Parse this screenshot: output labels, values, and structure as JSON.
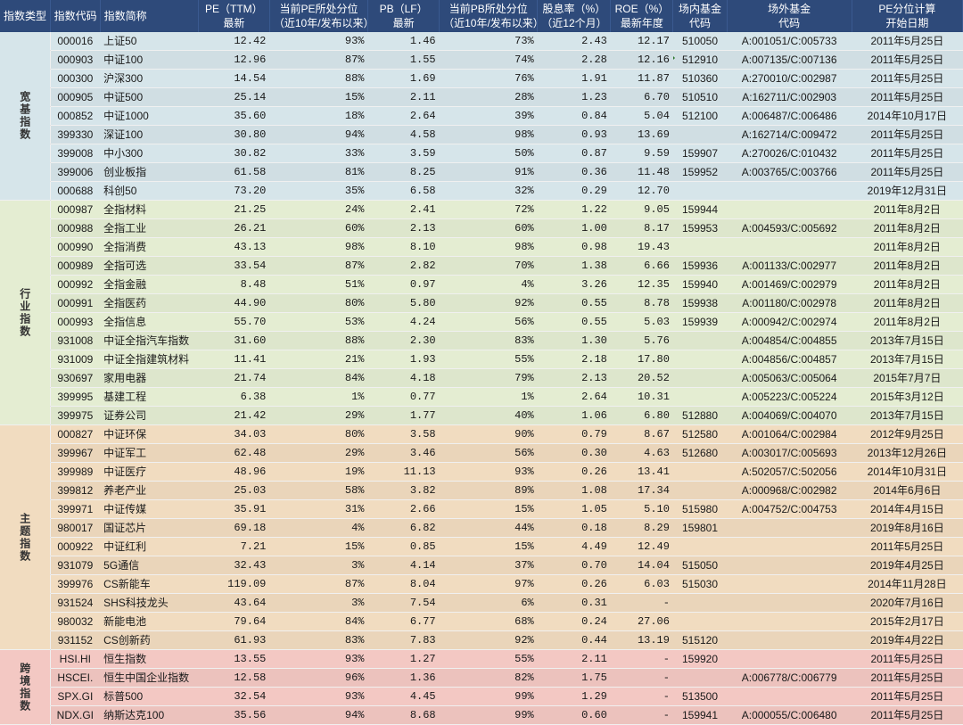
{
  "columns": {
    "cat": "指数类型",
    "code": "指数代码",
    "name": "指数简称",
    "pe": "PE（TTM）\n最新",
    "pe_pct": "当前PE所处分位\n（近10年/发布以来）",
    "pb": "PB（LF）\n最新",
    "pb_pct": "当前PB所处分位\n（近10年/发布以来）",
    "div": "股息率（%）\n（近12个月）",
    "roe": "ROE（%）\n最新年度",
    "innerFund": "场内基金\n代码",
    "outerFund": "场外基金\n代码",
    "date": "PE分位计算\n开始日期"
  },
  "groups": [
    {
      "label": "宽基指数",
      "bg": "bg-broad",
      "rows": [
        {
          "code": "000016",
          "name": "上证50",
          "pe": "12.42",
          "pe_pct": "93%",
          "pb": "1.46",
          "pb_pct": "73%",
          "div": "2.43",
          "roe": "12.17",
          "inner": "510050",
          "outer": "A:001051/C:005733",
          "date": "2011年5月25日"
        },
        {
          "code": "000903",
          "name": "中证100",
          "pe": "12.96",
          "pe_pct": "87%",
          "pb": "1.55",
          "pb_pct": "74%",
          "div": "2.28",
          "roe": "12.16",
          "inner": "512910",
          "innerMark": true,
          "outer": "A:007135/C:007136",
          "date": "2011年5月25日"
        },
        {
          "code": "000300",
          "name": "沪深300",
          "pe": "14.54",
          "pe_pct": "88%",
          "pb": "1.69",
          "pb_pct": "76%",
          "div": "1.91",
          "roe": "11.87",
          "inner": "510360",
          "outer": "A:270010/C:002987",
          "date": "2011年5月25日"
        },
        {
          "code": "000905",
          "name": "中证500",
          "pe": "25.14",
          "pe_pct": "15%",
          "pb": "2.11",
          "pb_pct": "28%",
          "div": "1.23",
          "roe": "6.70",
          "inner": "510510",
          "outer": "A:162711/C:002903",
          "date": "2011年5月25日"
        },
        {
          "code": "000852",
          "name": "中证1000",
          "pe": "35.60",
          "pe_pct": "18%",
          "pb": "2.64",
          "pb_pct": "39%",
          "div": "0.84",
          "roe": "5.04",
          "inner": "512100",
          "outer": "A:006487/C:006486",
          "date": "2014年10月17日"
        },
        {
          "code": "399330",
          "name": "深证100",
          "pe": "30.80",
          "pe_pct": "94%",
          "pb": "4.58",
          "pb_pct": "98%",
          "div": "0.93",
          "roe": "13.69",
          "inner": "",
          "outer": "A:162714/C:009472",
          "date": "2011年5月25日"
        },
        {
          "code": "399008",
          "name": "中小300",
          "pe": "30.82",
          "pe_pct": "33%",
          "pb": "3.59",
          "pb_pct": "50%",
          "div": "0.87",
          "roe": "9.59",
          "inner": "159907",
          "outer": "A:270026/C:010432",
          "date": "2011年5月25日"
        },
        {
          "code": "399006",
          "name": "创业板指",
          "pe": "61.58",
          "pe_pct": "81%",
          "pb": "8.25",
          "pb_pct": "91%",
          "div": "0.36",
          "roe": "11.48",
          "inner": "159952",
          "outer": "A:003765/C:003766",
          "date": "2011年5月25日"
        },
        {
          "code": "000688",
          "name": "科创50",
          "pe": "73.20",
          "pe_pct": "35%",
          "pb": "6.58",
          "pb_pct": "32%",
          "div": "0.29",
          "roe": "12.70",
          "inner": "",
          "outer": "",
          "date": "2019年12月31日"
        }
      ]
    },
    {
      "label": "行业指数",
      "bg": "bg-sector",
      "rows": [
        {
          "code": "000987",
          "name": "全指材料",
          "pe": "21.25",
          "pe_pct": "24%",
          "pb": "2.41",
          "pb_pct": "72%",
          "div": "1.22",
          "roe": "9.05",
          "inner": "159944",
          "outer": "",
          "date": "2011年8月2日"
        },
        {
          "code": "000988",
          "name": "全指工业",
          "pe": "26.21",
          "pe_pct": "60%",
          "pb": "2.13",
          "pb_pct": "60%",
          "div": "1.00",
          "roe": "8.17",
          "inner": "159953",
          "outer": "A:004593/C:005692",
          "date": "2011年8月2日"
        },
        {
          "code": "000990",
          "name": "全指消费",
          "pe": "43.13",
          "pe_pct": "98%",
          "pb": "8.10",
          "pb_pct": "98%",
          "div": "0.98",
          "roe": "19.43",
          "inner": "",
          "outer": "",
          "date": "2011年8月2日"
        },
        {
          "code": "000989",
          "name": "全指可选",
          "pe": "33.54",
          "pe_pct": "87%",
          "pb": "2.82",
          "pb_pct": "70%",
          "div": "1.38",
          "roe": "6.66",
          "inner": "159936",
          "outer": "A:001133/C:002977",
          "date": "2011年8月2日"
        },
        {
          "code": "000992",
          "name": "全指金融",
          "pe": "8.48",
          "pe_pct": "51%",
          "pb": "0.97",
          "pb_pct": "4%",
          "div": "3.26",
          "roe": "12.35",
          "inner": "159940",
          "outer": "A:001469/C:002979",
          "date": "2011年8月2日"
        },
        {
          "code": "000991",
          "name": "全指医药",
          "pe": "44.90",
          "pe_pct": "80%",
          "pb": "5.80",
          "pb_pct": "92%",
          "div": "0.55",
          "roe": "8.78",
          "inner": "159938",
          "outer": "A:001180/C:002978",
          "date": "2011年8月2日"
        },
        {
          "code": "000993",
          "name": "全指信息",
          "pe": "55.70",
          "pe_pct": "53%",
          "pb": "4.24",
          "pb_pct": "56%",
          "div": "0.55",
          "roe": "5.03",
          "inner": "159939",
          "outer": "A:000942/C:002974",
          "date": "2011年8月2日"
        },
        {
          "code": "931008",
          "name": "中证全指汽车指数",
          "pe": "31.60",
          "pe_pct": "88%",
          "pb": "2.30",
          "pb_pct": "83%",
          "div": "1.30",
          "roe": "5.76",
          "inner": "",
          "outer": "A:004854/C:004855",
          "date": "2013年7月15日"
        },
        {
          "code": "931009",
          "name": "中证全指建筑材料",
          "pe": "11.41",
          "pe_pct": "21%",
          "pb": "1.93",
          "pb_pct": "55%",
          "div": "2.18",
          "roe": "17.80",
          "inner": "",
          "outer": "A:004856/C:004857",
          "date": "2013年7月15日"
        },
        {
          "code": "930697",
          "name": "家用电器",
          "pe": "21.74",
          "pe_pct": "84%",
          "pb": "4.18",
          "pb_pct": "79%",
          "div": "2.13",
          "roe": "20.52",
          "inner": "",
          "outer": "A:005063/C:005064",
          "date": "2015年7月7日"
        },
        {
          "code": "399995",
          "name": "基建工程",
          "pe": "6.38",
          "pe_pct": "1%",
          "pb": "0.77",
          "pb_pct": "1%",
          "div": "2.64",
          "roe": "10.31",
          "inner": "",
          "outer": "A:005223/C:005224",
          "date": "2015年3月12日"
        },
        {
          "code": "399975",
          "name": "证券公司",
          "pe": "21.42",
          "pe_pct": "29%",
          "pb": "1.77",
          "pb_pct": "40%",
          "div": "1.06",
          "roe": "6.80",
          "inner": "512880",
          "outer": "A:004069/C:004070",
          "date": "2013年7月15日"
        }
      ]
    },
    {
      "label": "主题指数",
      "bg": "bg-theme",
      "rows": [
        {
          "code": "000827",
          "name": "中证环保",
          "pe": "34.03",
          "pe_pct": "80%",
          "pb": "3.58",
          "pb_pct": "90%",
          "div": "0.79",
          "roe": "8.67",
          "inner": "512580",
          "outer": "A:001064/C:002984",
          "date": "2012年9月25日"
        },
        {
          "code": "399967",
          "name": "中证军工",
          "pe": "62.48",
          "pe_pct": "29%",
          "pb": "3.46",
          "pb_pct": "56%",
          "div": "0.30",
          "roe": "4.63",
          "inner": "512680",
          "outer": "A:003017/C:005693",
          "date": "2013年12月26日"
        },
        {
          "code": "399989",
          "name": "中证医疗",
          "pe": "48.96",
          "pe_pct": "19%",
          "pb": "11.13",
          "pb_pct": "93%",
          "div": "0.26",
          "roe": "13.41",
          "inner": "",
          "outer": "A:502057/C:502056",
          "date": "2014年10月31日"
        },
        {
          "code": "399812",
          "name": "养老产业",
          "pe": "25.03",
          "pe_pct": "58%",
          "pb": "3.82",
          "pb_pct": "89%",
          "div": "1.08",
          "roe": "17.34",
          "inner": "",
          "outer": "A:000968/C:002982",
          "date": "2014年6月6日"
        },
        {
          "code": "399971",
          "name": "中证传媒",
          "pe": "35.91",
          "pe_pct": "31%",
          "pb": "2.66",
          "pb_pct": "15%",
          "div": "1.05",
          "roe": "5.10",
          "inner": "515980",
          "outer": "A:004752/C:004753",
          "date": "2014年4月15日"
        },
        {
          "code": "980017",
          "name": "国证芯片",
          "pe": "69.18",
          "pe_pct": "4%",
          "pb": "6.82",
          "pb_pct": "44%",
          "div": "0.18",
          "roe": "8.29",
          "inner": "159801",
          "outer": "",
          "date": "2019年8月16日"
        },
        {
          "code": "000922",
          "name": "中证红利",
          "pe": "7.21",
          "pe_pct": "15%",
          "pb": "0.85",
          "pb_pct": "15%",
          "div": "4.49",
          "roe": "12.49",
          "inner": "",
          "outer": "",
          "date": "2011年5月25日"
        },
        {
          "code": "931079",
          "name": "5G通信",
          "pe": "32.43",
          "pe_pct": "3%",
          "pb": "4.14",
          "pb_pct": "37%",
          "div": "0.70",
          "roe": "14.04",
          "inner": "515050",
          "outer": "",
          "date": "2019年4月25日"
        },
        {
          "code": "399976",
          "name": "CS新能车",
          "pe": "119.09",
          "pe_pct": "87%",
          "pb": "8.04",
          "pb_pct": "97%",
          "div": "0.26",
          "roe": "6.03",
          "inner": "515030",
          "outer": "",
          "date": "2014年11月28日"
        },
        {
          "code": "931524",
          "name": "SHS科技龙头",
          "pe": "43.64",
          "pe_pct": "3%",
          "pb": "7.54",
          "pb_pct": "6%",
          "div": "0.31",
          "roe": "-",
          "inner": "",
          "outer": "",
          "date": "2020年7月16日"
        },
        {
          "code": "980032",
          "name": "新能电池",
          "pe": "79.64",
          "pe_pct": "84%",
          "pb": "6.77",
          "pb_pct": "68%",
          "div": "0.24",
          "roe": "27.06",
          "inner": "",
          "outer": "",
          "date": "2015年2月17日"
        },
        {
          "code": "931152",
          "name": "CS创新药",
          "pe": "61.93",
          "pe_pct": "83%",
          "pb": "7.83",
          "pb_pct": "92%",
          "div": "0.44",
          "roe": "13.19",
          "inner": "515120",
          "outer": "",
          "date": "2019年4月22日"
        }
      ]
    },
    {
      "label": "跨境指数",
      "bg": "bg-cross",
      "rows": [
        {
          "code": "HSI.HI",
          "name": "恒生指数",
          "pe": "13.55",
          "pe_pct": "93%",
          "pb": "1.27",
          "pb_pct": "55%",
          "div": "2.11",
          "roe": "-",
          "inner": "159920",
          "outer": "",
          "date": "2011年5月25日"
        },
        {
          "code": "HSCEI.",
          "name": "恒生中国企业指数",
          "pe": "12.58",
          "pe_pct": "96%",
          "pb": "1.36",
          "pb_pct": "82%",
          "div": "1.75",
          "roe": "-",
          "inner": "",
          "outer": "A:006778/C:006779",
          "date": "2011年5月25日"
        },
        {
          "code": "SPX.GI",
          "name": "标普500",
          "pe": "32.54",
          "pe_pct": "93%",
          "pb": "4.45",
          "pb_pct": "99%",
          "div": "1.29",
          "roe": "-",
          "inner": "513500",
          "outer": "",
          "date": "2011年5月25日"
        },
        {
          "code": "NDX.GI",
          "name": "纳斯达克100",
          "pe": "35.56",
          "pe_pct": "94%",
          "pb": "8.68",
          "pb_pct": "99%",
          "div": "0.60",
          "roe": "-",
          "inner": "159941",
          "outer": "A:000055/C:006480",
          "date": "2011年5月25日"
        }
      ]
    }
  ]
}
